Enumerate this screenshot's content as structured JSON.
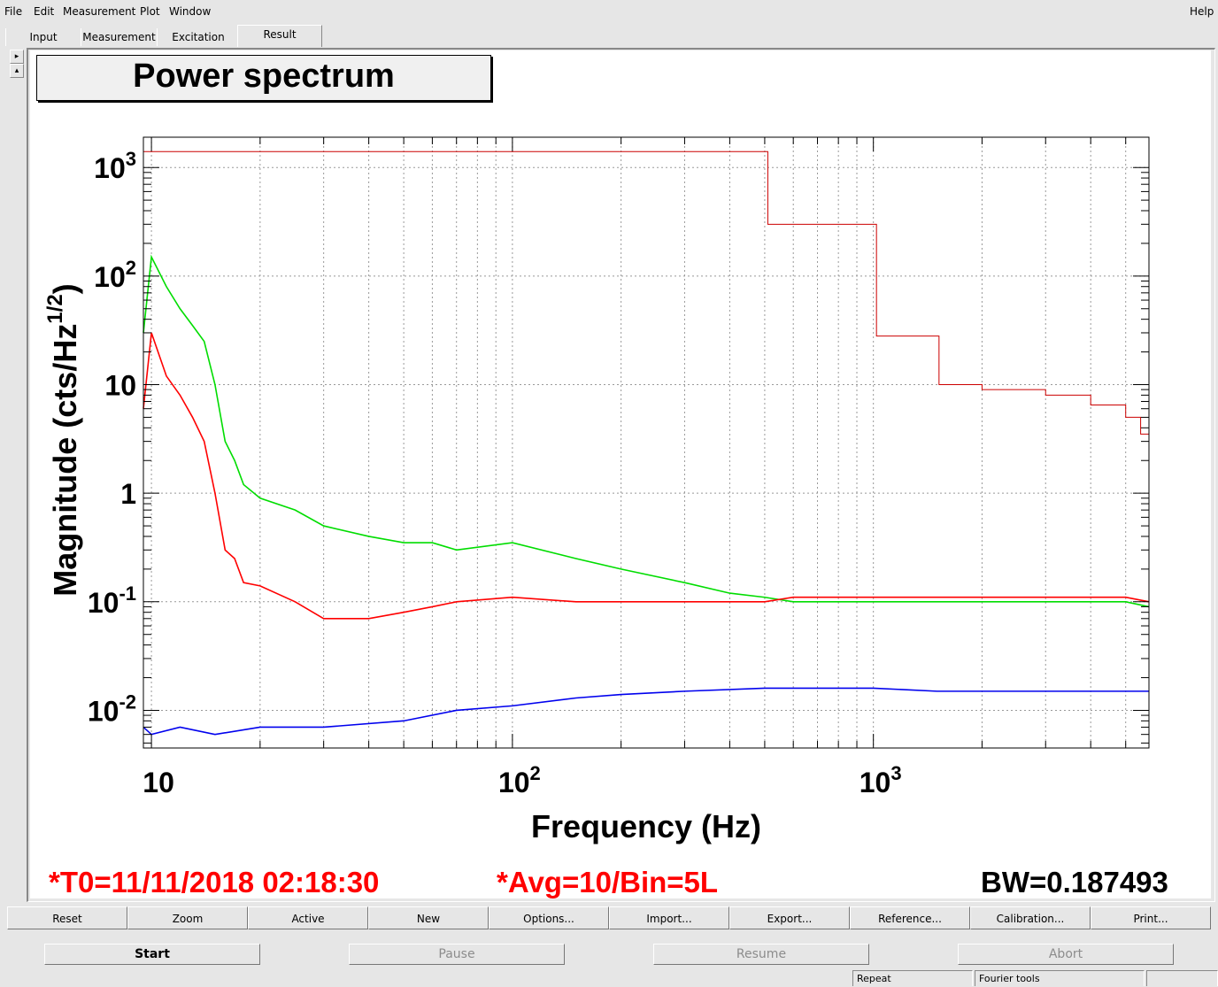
{
  "menu": {
    "file": "File",
    "edit": "Edit",
    "measurement": "Measurement",
    "plot": "Plot",
    "window": "Window",
    "help": "Help"
  },
  "tabs": [
    "Input",
    "Measurement",
    "Excitation",
    "Result"
  ],
  "active_tab": "Result",
  "plot_title": "Power spectrum",
  "status": {
    "t0": "*T0=11/11/2018 02:18:30",
    "avg": "*Avg=10/Bin=5L",
    "bw": "BW=0.187493"
  },
  "toolbar": [
    "Reset",
    "Zoom",
    "Active",
    "New",
    "Options...",
    "Import...",
    "Export...",
    "Reference...",
    "Calibration...",
    "Print..."
  ],
  "controls": {
    "start": "Start",
    "pause": "Pause",
    "resume": "Resume",
    "abort": "Abort"
  },
  "statusbar": {
    "repeat": "Repeat",
    "fourier": "Fourier tools"
  },
  "colors": {
    "green": "#00dd00",
    "red": "#ff0000",
    "blue": "#0000ee",
    "darkred": "#cc0000"
  },
  "chart_data": {
    "type": "line",
    "xlabel": "Frequency (Hz)",
    "ylabel": "Magnitude (cts/Hz^{1/2})",
    "xscale": "log",
    "yscale": "log",
    "xlim": [
      9.5,
      5800
    ],
    "ylim": [
      0.0045,
      1900
    ],
    "grid": true,
    "x_tick_labels": [
      "10",
      "10^2",
      "10^3"
    ],
    "y_tick_labels": [
      "10^-2",
      "10^-1",
      "1",
      "10",
      "10^2",
      "10^3"
    ],
    "series": [
      {
        "color": "green",
        "x": [
          9.5,
          10,
          11,
          12,
          13,
          14,
          15,
          16,
          17,
          18,
          20,
          25,
          30,
          40,
          50,
          60,
          70,
          100,
          150,
          200,
          300,
          400,
          500,
          600,
          800,
          1000,
          1500,
          2000,
          3000,
          4000,
          5000,
          5800
        ],
        "y": [
          30,
          150,
          80,
          50,
          35,
          25,
          10,
          3,
          2,
          1.2,
          0.9,
          0.7,
          0.5,
          0.4,
          0.35,
          0.35,
          0.3,
          0.35,
          0.25,
          0.2,
          0.15,
          0.12,
          0.11,
          0.1,
          0.1,
          0.1,
          0.1,
          0.1,
          0.1,
          0.1,
          0.1,
          0.09
        ]
      },
      {
        "color": "red",
        "x": [
          9.5,
          10,
          11,
          12,
          13,
          14,
          15,
          16,
          17,
          18,
          20,
          25,
          30,
          40,
          50,
          60,
          70,
          100,
          150,
          200,
          300,
          400,
          500,
          600,
          800,
          1000,
          1500,
          2000,
          3000,
          4000,
          5000,
          5800
        ],
        "y": [
          6,
          30,
          12,
          8,
          5,
          3,
          1,
          0.3,
          0.25,
          0.15,
          0.14,
          0.1,
          0.07,
          0.07,
          0.08,
          0.09,
          0.1,
          0.11,
          0.1,
          0.1,
          0.1,
          0.1,
          0.1,
          0.11,
          0.11,
          0.11,
          0.11,
          0.11,
          0.11,
          0.11,
          0.11,
          0.1
        ]
      },
      {
        "color": "blue",
        "x": [
          9.5,
          10,
          12,
          15,
          20,
          30,
          50,
          70,
          100,
          150,
          200,
          300,
          500,
          700,
          1000,
          1500,
          2000,
          3000,
          4000,
          5000,
          5800
        ],
        "y": [
          0.007,
          0.006,
          0.007,
          0.006,
          0.007,
          0.007,
          0.008,
          0.01,
          0.011,
          0.013,
          0.014,
          0.015,
          0.016,
          0.016,
          0.016,
          0.015,
          0.015,
          0.015,
          0.015,
          0.015,
          0.015
        ]
      },
      {
        "color": "darkred",
        "x": [
          9.5,
          500,
          510,
          1000,
          1020,
          1500,
          1520,
          2000,
          3000,
          4000,
          5000,
          5500,
          5800
        ],
        "y": [
          1400,
          1400,
          300,
          300,
          28,
          28,
          10,
          9,
          8,
          6.5,
          5,
          3.5,
          2
        ]
      }
    ]
  }
}
